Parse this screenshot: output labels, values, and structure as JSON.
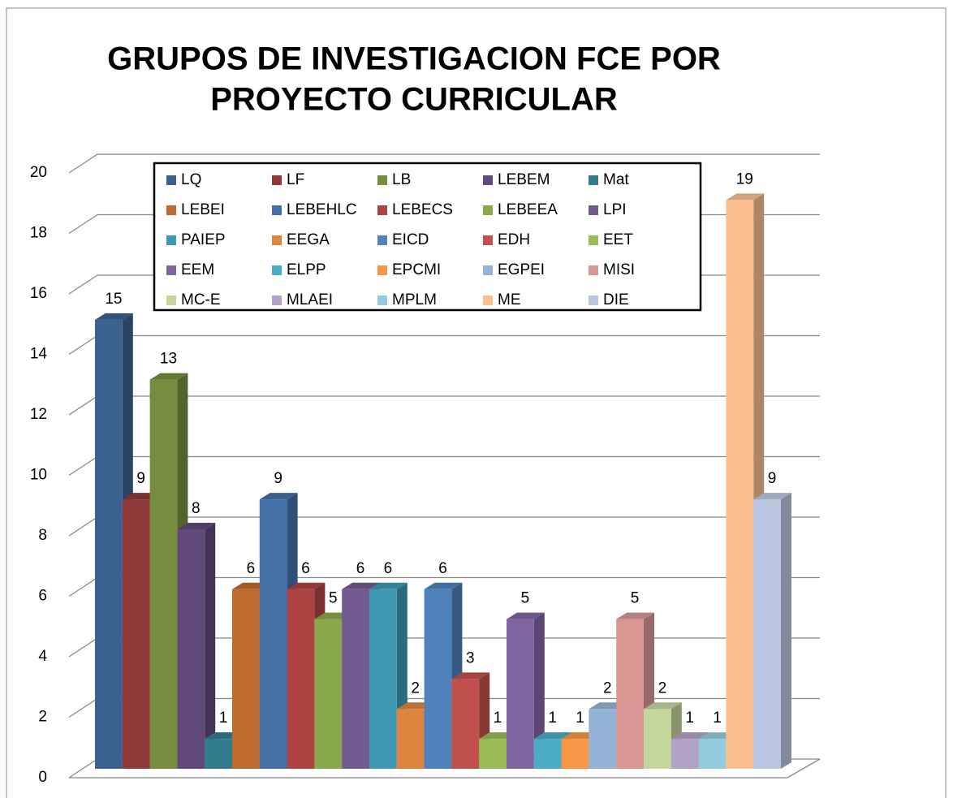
{
  "chart_data": {
    "type": "bar3d",
    "title": [
      "GRUPOS DE INVESTIGACION FCE POR",
      "PROYECTO CURRICULAR"
    ],
    "categories": [
      null
    ],
    "ylim": [
      0,
      20
    ],
    "yticks": [
      0,
      2,
      4,
      6,
      8,
      10,
      12,
      14,
      16,
      18,
      20
    ],
    "grid": true,
    "legend": "top",
    "series": [
      {
        "name": "LQ",
        "color": "#3b6190",
        "values": [
          15
        ]
      },
      {
        "name": "LF",
        "color": "#8e3a38",
        "values": [
          9
        ]
      },
      {
        "name": "LB",
        "color": "#768d3f",
        "values": [
          13
        ]
      },
      {
        "name": "LEBEM",
        "color": "#604a7b",
        "values": [
          8
        ]
      },
      {
        "name": "Mat",
        "color": "#317d8f",
        "values": [
          1
        ]
      },
      {
        "name": "LEBEI",
        "color": "#bd6b2f",
        "values": [
          6
        ]
      },
      {
        "name": "LEBEHLC",
        "color": "#4470a8",
        "values": [
          9
        ]
      },
      {
        "name": "LEBECS",
        "color": "#ad4442",
        "values": [
          6
        ]
      },
      {
        "name": "LEBEEA",
        "color": "#8aa84c",
        "values": [
          5
        ]
      },
      {
        "name": "LPI",
        "color": "#735a91",
        "values": [
          6
        ]
      },
      {
        "name": "PAIEP",
        "color": "#3f98b4",
        "values": [
          6
        ]
      },
      {
        "name": "EEGA",
        "color": "#dd8540",
        "values": [
          2
        ]
      },
      {
        "name": "EICD",
        "color": "#4f81bd",
        "values": [
          6
        ]
      },
      {
        "name": "EDH",
        "color": "#c0504d",
        "values": [
          3
        ]
      },
      {
        "name": "EET",
        "color": "#9bbb59",
        "values": [
          1
        ]
      },
      {
        "name": "EEM",
        "color": "#8064a2",
        "values": [
          5
        ]
      },
      {
        "name": "ELPP",
        "color": "#4bacc6",
        "values": [
          1
        ]
      },
      {
        "name": "EPCMI",
        "color": "#f79646",
        "values": [
          1
        ]
      },
      {
        "name": "EGPEI",
        "color": "#95b3d7",
        "values": [
          2
        ]
      },
      {
        "name": "MISI",
        "color": "#d99694",
        "values": [
          5
        ]
      },
      {
        "name": "MC-E",
        "color": "#c3d69b",
        "values": [
          2
        ]
      },
      {
        "name": "MLAEI",
        "color": "#b3a2c7",
        "values": [
          1
        ]
      },
      {
        "name": "MPLM",
        "color": "#93cddd",
        "values": [
          1
        ]
      },
      {
        "name": "ME",
        "color": "#fac090",
        "values": [
          19
        ]
      },
      {
        "name": "DIE",
        "color": "#b9c7e0",
        "values": [
          9
        ]
      }
    ]
  }
}
